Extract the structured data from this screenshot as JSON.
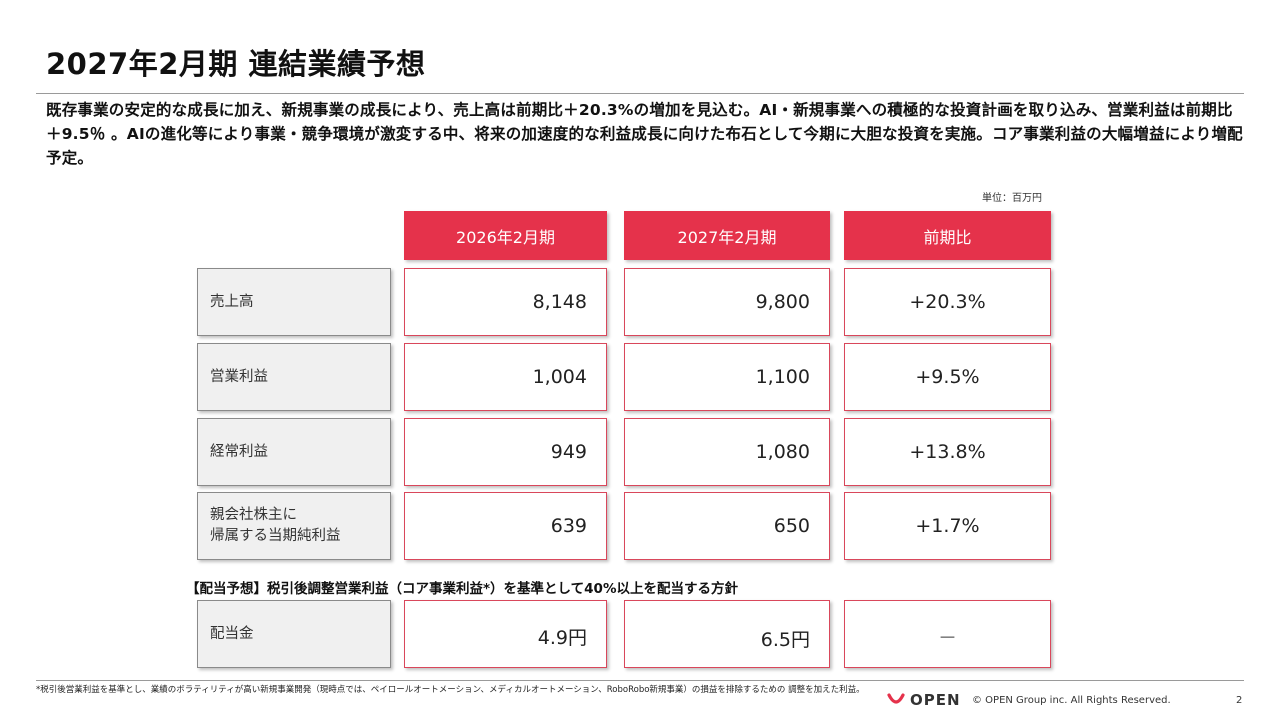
{
  "title": "2027年2月期 連結業績予想",
  "lead": "既存事業の安定的な成長に加え、新規事業の成長により、売上高は前期比＋20.3%の増加を見込む。AI・新規事業への積極的な投資計画を取り込み、営業利益は前期比＋9.5％ 。AIの進化等により事業・競争環境が激変する中、将来の加速度的な利益成長に向けた布石として今期に大胆な投資を実施。コア事業利益の大幅増益により増配予定。",
  "unit": "単位：百万円",
  "headers": [
    "2026年2月期",
    "2027年2月期",
    "前期比"
  ],
  "rows": [
    {
      "label": "売上高",
      "fy2026": "8,148",
      "fy2027": "9,800",
      "yoy": "+20.3%"
    },
    {
      "label": "営業利益",
      "fy2026": "1,004",
      "fy2027": "1,100",
      "yoy": "+9.5%"
    },
    {
      "label": "経常利益",
      "fy2026": "949",
      "fy2027": "1,080",
      "yoy": "+13.8%"
    },
    {
      "label_line1": "親会社株主に",
      "label_line2": "帰属する当期純利益",
      "fy2026": "639",
      "fy2027": "650",
      "yoy": "+1.7%"
    }
  ],
  "dividend_policy": "【配当予想】税引後調整営業利益（コア事業利益*）を基準として40%以上を配当する方針",
  "dividend": {
    "label": "配当金",
    "fy2026": "4.9円",
    "fy2027": "6.5円",
    "yoy": "－"
  },
  "footnote": "*税引後営業利益を基準とし、業績のボラティリティが高い新規事業開発（現時点では、ペイロールオートメーション、メディカルオートメーション、RoboRobo新規事業）の損益を排除するための 調整を加えた利益。",
  "logo_text": "OPEN",
  "copyright": "© OPEN Group inc. All Rights Reserved.",
  "page_number": "2",
  "colors": {
    "accent": "#e5324b",
    "label_bg": "#f0f0f0",
    "logo_mark": "#e5324b"
  }
}
